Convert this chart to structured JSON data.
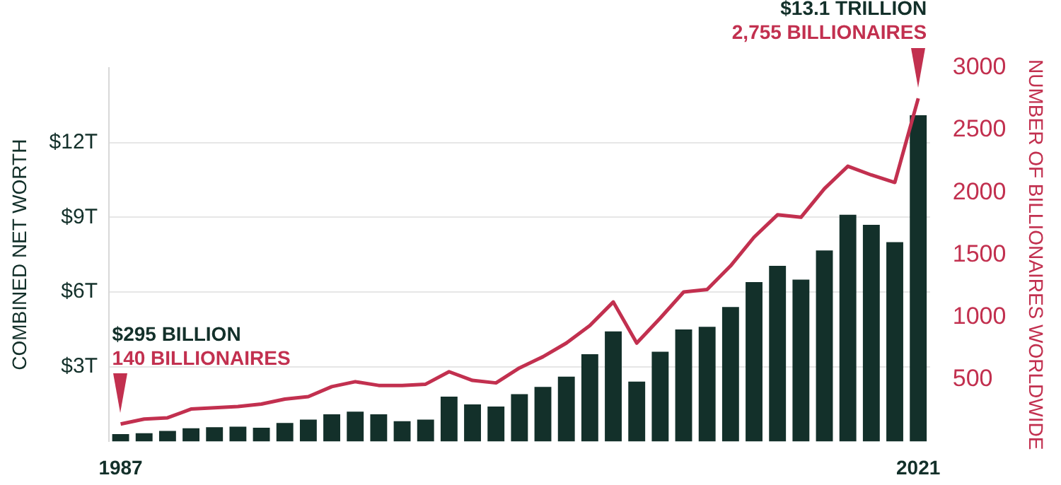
{
  "chart_data": {
    "type": "bar",
    "ylabel": "COMBINED NET WORTH",
    "y2label": "NUMBER OF BILLIONAIRES WORLDWIDE",
    "categories": [
      "1987",
      null,
      null,
      null,
      null,
      null,
      null,
      null,
      null,
      null,
      null,
      null,
      null,
      null,
      null,
      null,
      null,
      null,
      null,
      null,
      null,
      null,
      null,
      null,
      null,
      null,
      null,
      null,
      null,
      null,
      null,
      null,
      null,
      null,
      "2021"
    ],
    "series": [
      {
        "color": "#13302a",
        "values": [
          0.295,
          0.33,
          0.42,
          0.53,
          0.57,
          0.59,
          0.55,
          0.74,
          0.88,
          1.09,
          1.2,
          1.09,
          0.81,
          0.88,
          1.8,
          1.49,
          1.4,
          1.9,
          2.19,
          2.6,
          3.5,
          4.42,
          2.4,
          3.6,
          4.5,
          4.6,
          5.4,
          6.4,
          7.05,
          6.5,
          7.67,
          9.1,
          8.7,
          8.0,
          13.1
        ]
      },
      {
        "type": "line",
        "axis": "y2",
        "color": "#c2304f",
        "values": [
          140,
          180,
          190,
          260,
          270,
          280,
          300,
          340,
          360,
          440,
          480,
          450,
          450,
          460,
          560,
          490,
          470,
          590,
          680,
          790,
          930,
          1120,
          790,
          990,
          1200,
          1220,
          1410,
          1640,
          1820,
          1800,
          2030,
          2210,
          2140,
          2080,
          2755
        ]
      }
    ],
    "ylim": [
      0,
      15
    ],
    "yticks": [
      {
        "value": 3,
        "label": "$3T"
      },
      {
        "value": 6,
        "label": "$6T"
      },
      {
        "value": 9,
        "label": "$9T"
      },
      {
        "value": 12,
        "label": "$12T"
      }
    ],
    "y2lim": [
      0,
      3000
    ],
    "y2ticks": [
      500,
      1000,
      1500,
      2000,
      2500,
      3000
    ],
    "grid": "y",
    "legend": false,
    "annotations": [
      "$295 BILLION",
      "140 BILLIONAIRES",
      "$13.1 TRILLION",
      "2,755 BILLIONAIRES"
    ]
  }
}
